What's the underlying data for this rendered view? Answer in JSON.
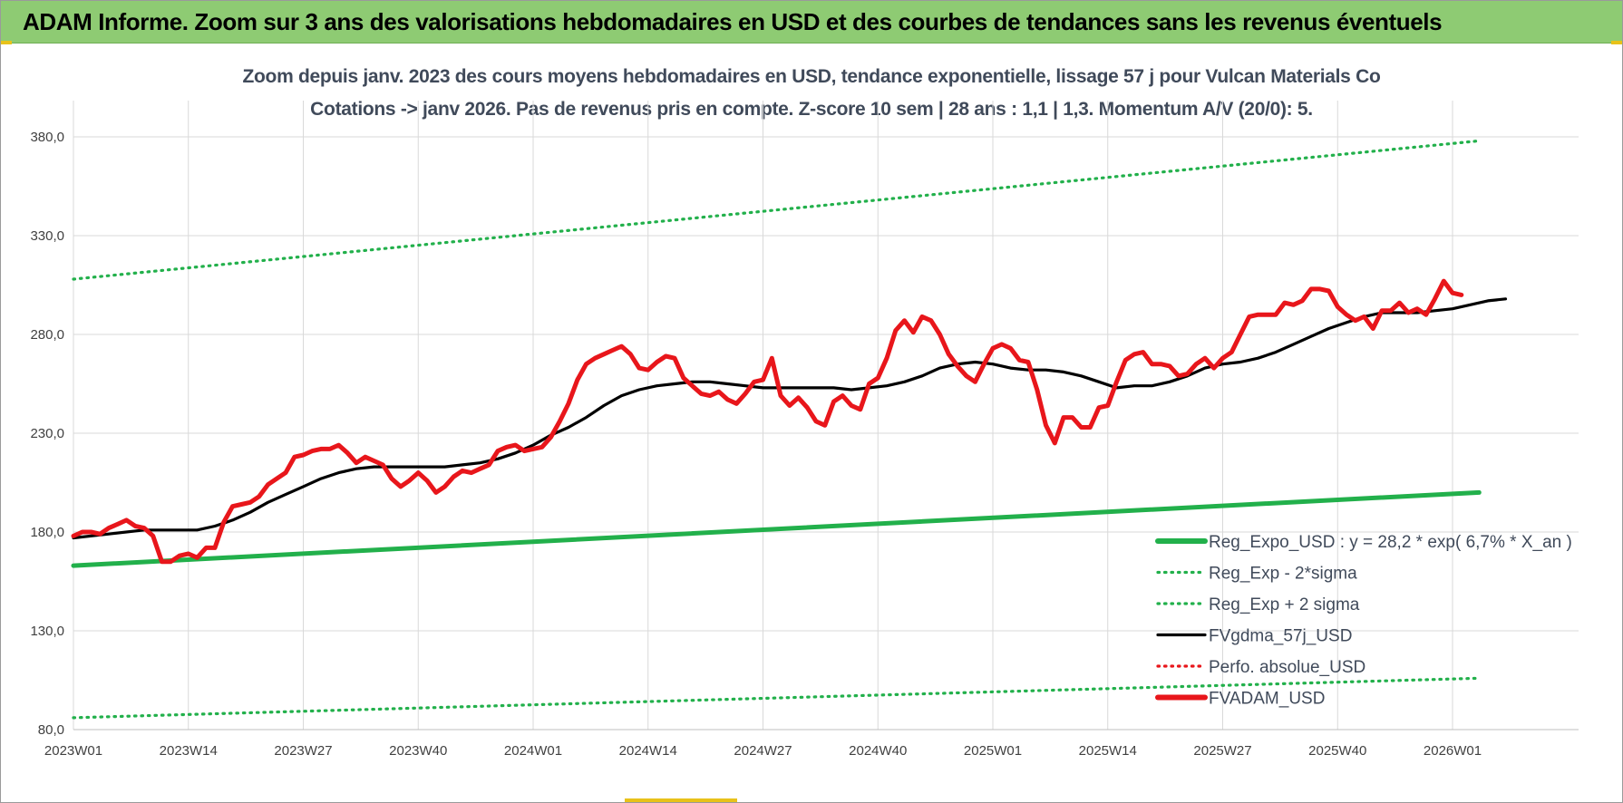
{
  "banner": {
    "title": "ADAM Informe. Zoom sur 3 ans des valorisations hebdomadaires en USD et des courbes de tendances sans les revenus éventuels"
  },
  "colors": {
    "banner": "#8ecb73",
    "regression": "#22b04b",
    "price": "#e8161b",
    "moving_average": "#000000",
    "perf_absolue": "#e8161b",
    "grid": "#d9d9d9"
  },
  "chart_data": {
    "type": "line",
    "title": "Zoom depuis janv. 2023 des cours moyens hebdomadaires en USD, tendance exponentielle, lissage 57 j pour Vulcan Materials Co",
    "subtitle": "Cotations -> janv 2026. Pas de revenus pris en compte. Z-score 10 sem | 28 ans : 1,1 | 1,3. Momentum A/V (20/0): 5.",
    "xlabel": "",
    "ylabel": "",
    "ylim": [
      80,
      390
    ],
    "yticks": [
      "80,0",
      "130,0",
      "180,0",
      "230,0",
      "280,0",
      "330,0",
      "380,0"
    ],
    "ytick_values": [
      80,
      130,
      180,
      230,
      280,
      330,
      380
    ],
    "xticks": [
      "2023W01",
      "2023W14",
      "2023W27",
      "2023W40",
      "2024W01",
      "2024W14",
      "2024W27",
      "2024W40",
      "2025W01",
      "2025W14",
      "2025W27",
      "2025W40",
      "2026W01"
    ],
    "n_weeks": 160,
    "grid": true,
    "legend_position": "bottom-right",
    "series": [
      {
        "name": "Reg_Expo_USD : y = 28,2 * exp( 6,7% * X_an )",
        "style": "solid-thick",
        "color": "#22b04b",
        "points": [
          [
            0,
            163
          ],
          [
            159,
            200
          ]
        ]
      },
      {
        "name": "Reg_Exp - 2*sigma",
        "style": "dotted",
        "color": "#22b04b",
        "points": [
          [
            0,
            86
          ],
          [
            159,
            106
          ]
        ]
      },
      {
        "name": "Reg_Exp + 2 sigma",
        "style": "dotted",
        "color": "#22b04b",
        "points": [
          [
            0,
            308
          ],
          [
            159,
            378
          ]
        ]
      },
      {
        "name": "FVgdma_57j_USD",
        "style": "solid",
        "color": "#000000",
        "points": [
          [
            0,
            177
          ],
          [
            4,
            179
          ],
          [
            8,
            181
          ],
          [
            12,
            181
          ],
          [
            14,
            181
          ],
          [
            16,
            183
          ],
          [
            18,
            186
          ],
          [
            20,
            190
          ],
          [
            22,
            195
          ],
          [
            24,
            199
          ],
          [
            26,
            203
          ],
          [
            28,
            207
          ],
          [
            30,
            210
          ],
          [
            32,
            212
          ],
          [
            34,
            213
          ],
          [
            36,
            213
          ],
          [
            38,
            213
          ],
          [
            40,
            213
          ],
          [
            42,
            213
          ],
          [
            44,
            214
          ],
          [
            46,
            215
          ],
          [
            48,
            217
          ],
          [
            50,
            220
          ],
          [
            52,
            224
          ],
          [
            54,
            229
          ],
          [
            56,
            233
          ],
          [
            58,
            238
          ],
          [
            60,
            244
          ],
          [
            62,
            249
          ],
          [
            64,
            252
          ],
          [
            66,
            254
          ],
          [
            68,
            255
          ],
          [
            70,
            256
          ],
          [
            72,
            256
          ],
          [
            74,
            255
          ],
          [
            76,
            254
          ],
          [
            78,
            253
          ],
          [
            80,
            253
          ],
          [
            82,
            253
          ],
          [
            84,
            253
          ],
          [
            86,
            253
          ],
          [
            88,
            252
          ],
          [
            90,
            253
          ],
          [
            92,
            254
          ],
          [
            94,
            256
          ],
          [
            96,
            259
          ],
          [
            98,
            263
          ],
          [
            100,
            265
          ],
          [
            102,
            266
          ],
          [
            104,
            265
          ],
          [
            106,
            263
          ],
          [
            108,
            262
          ],
          [
            110,
            262
          ],
          [
            112,
            261
          ],
          [
            114,
            259
          ],
          [
            116,
            256
          ],
          [
            118,
            253
          ],
          [
            120,
            254
          ],
          [
            122,
            254
          ],
          [
            124,
            256
          ],
          [
            126,
            259
          ],
          [
            128,
            263
          ],
          [
            130,
            265
          ],
          [
            132,
            266
          ],
          [
            134,
            268
          ],
          [
            136,
            271
          ],
          [
            138,
            275
          ],
          [
            140,
            279
          ],
          [
            142,
            283
          ],
          [
            144,
            286
          ],
          [
            146,
            289
          ],
          [
            148,
            291
          ],
          [
            150,
            291
          ],
          [
            152,
            291
          ],
          [
            154,
            292
          ],
          [
            156,
            293
          ],
          [
            158,
            295
          ],
          [
            160,
            297
          ],
          [
            162,
            298
          ]
        ]
      },
      {
        "name": "Perfo. absolue_USD",
        "style": "dotted",
        "color": "#e8161b",
        "points": []
      },
      {
        "name": "FVADAM_USD",
        "style": "solid-thick",
        "color": "#e8161b",
        "points": [
          [
            0,
            178
          ],
          [
            1,
            180
          ],
          [
            2,
            180
          ],
          [
            3,
            179
          ],
          [
            4,
            182
          ],
          [
            5,
            184
          ],
          [
            6,
            186
          ],
          [
            7,
            183
          ],
          [
            8,
            182
          ],
          [
            9,
            178
          ],
          [
            10,
            165
          ],
          [
            11,
            165
          ],
          [
            12,
            168
          ],
          [
            13,
            169
          ],
          [
            14,
            167
          ],
          [
            15,
            172
          ],
          [
            16,
            172
          ],
          [
            17,
            185
          ],
          [
            18,
            193
          ],
          [
            19,
            194
          ],
          [
            20,
            195
          ],
          [
            21,
            198
          ],
          [
            22,
            204
          ],
          [
            23,
            207
          ],
          [
            24,
            210
          ],
          [
            25,
            218
          ],
          [
            26,
            219
          ],
          [
            27,
            221
          ],
          [
            28,
            222
          ],
          [
            29,
            222
          ],
          [
            30,
            224
          ],
          [
            31,
            220
          ],
          [
            32,
            215
          ],
          [
            33,
            218
          ],
          [
            34,
            216
          ],
          [
            35,
            214
          ],
          [
            36,
            207
          ],
          [
            37,
            203
          ],
          [
            38,
            206
          ],
          [
            39,
            210
          ],
          [
            40,
            206
          ],
          [
            41,
            200
          ],
          [
            42,
            203
          ],
          [
            43,
            208
          ],
          [
            44,
            211
          ],
          [
            45,
            210
          ],
          [
            46,
            212
          ],
          [
            47,
            214
          ],
          [
            48,
            221
          ],
          [
            49,
            223
          ],
          [
            50,
            224
          ],
          [
            51,
            221
          ],
          [
            52,
            222
          ],
          [
            53,
            223
          ],
          [
            54,
            228
          ],
          [
            55,
            236
          ],
          [
            56,
            245
          ],
          [
            57,
            257
          ],
          [
            58,
            265
          ],
          [
            59,
            268
          ],
          [
            60,
            270
          ],
          [
            61,
            272
          ],
          [
            62,
            274
          ],
          [
            63,
            270
          ],
          [
            64,
            263
          ],
          [
            65,
            262
          ],
          [
            66,
            266
          ],
          [
            67,
            269
          ],
          [
            68,
            268
          ],
          [
            69,
            258
          ],
          [
            70,
            254
          ],
          [
            71,
            250
          ],
          [
            72,
            249
          ],
          [
            73,
            251
          ],
          [
            74,
            247
          ],
          [
            75,
            245
          ],
          [
            76,
            250
          ],
          [
            77,
            256
          ],
          [
            78,
            257
          ],
          [
            79,
            268
          ],
          [
            80,
            249
          ],
          [
            81,
            244
          ],
          [
            82,
            248
          ],
          [
            83,
            243
          ],
          [
            84,
            236
          ],
          [
            85,
            234
          ],
          [
            86,
            246
          ],
          [
            87,
            249
          ],
          [
            88,
            244
          ],
          [
            89,
            242
          ],
          [
            90,
            255
          ],
          [
            91,
            258
          ],
          [
            92,
            268
          ],
          [
            93,
            282
          ],
          [
            94,
            287
          ],
          [
            95,
            281
          ],
          [
            96,
            289
          ],
          [
            97,
            287
          ],
          [
            98,
            280
          ],
          [
            99,
            270
          ],
          [
            100,
            264
          ],
          [
            101,
            259
          ],
          [
            102,
            256
          ],
          [
            103,
            265
          ],
          [
            104,
            273
          ],
          [
            105,
            275
          ],
          [
            106,
            273
          ],
          [
            107,
            267
          ],
          [
            108,
            266
          ],
          [
            109,
            252
          ],
          [
            110,
            234
          ],
          [
            111,
            225
          ],
          [
            112,
            238
          ],
          [
            113,
            238
          ],
          [
            114,
            233
          ],
          [
            115,
            233
          ],
          [
            116,
            243
          ],
          [
            117,
            244
          ],
          [
            118,
            256
          ],
          [
            119,
            267
          ],
          [
            120,
            270
          ],
          [
            121,
            271
          ],
          [
            122,
            265
          ],
          [
            123,
            265
          ],
          [
            124,
            264
          ],
          [
            125,
            259
          ],
          [
            126,
            260
          ],
          [
            127,
            265
          ],
          [
            128,
            268
          ],
          [
            129,
            263
          ],
          [
            130,
            268
          ],
          [
            131,
            271
          ],
          [
            132,
            280
          ],
          [
            133,
            289
          ],
          [
            134,
            290
          ],
          [
            135,
            290
          ],
          [
            136,
            290
          ],
          [
            137,
            296
          ],
          [
            138,
            295
          ],
          [
            139,
            297
          ],
          [
            140,
            303
          ],
          [
            141,
            303
          ],
          [
            142,
            302
          ],
          [
            143,
            294
          ],
          [
            144,
            290
          ],
          [
            145,
            287
          ],
          [
            146,
            289
          ],
          [
            147,
            283
          ],
          [
            148,
            292
          ],
          [
            149,
            292
          ],
          [
            150,
            296
          ],
          [
            151,
            291
          ],
          [
            152,
            293
          ],
          [
            153,
            290
          ],
          [
            154,
            298
          ],
          [
            155,
            307
          ],
          [
            156,
            301
          ],
          [
            157,
            300
          ]
        ]
      }
    ]
  }
}
